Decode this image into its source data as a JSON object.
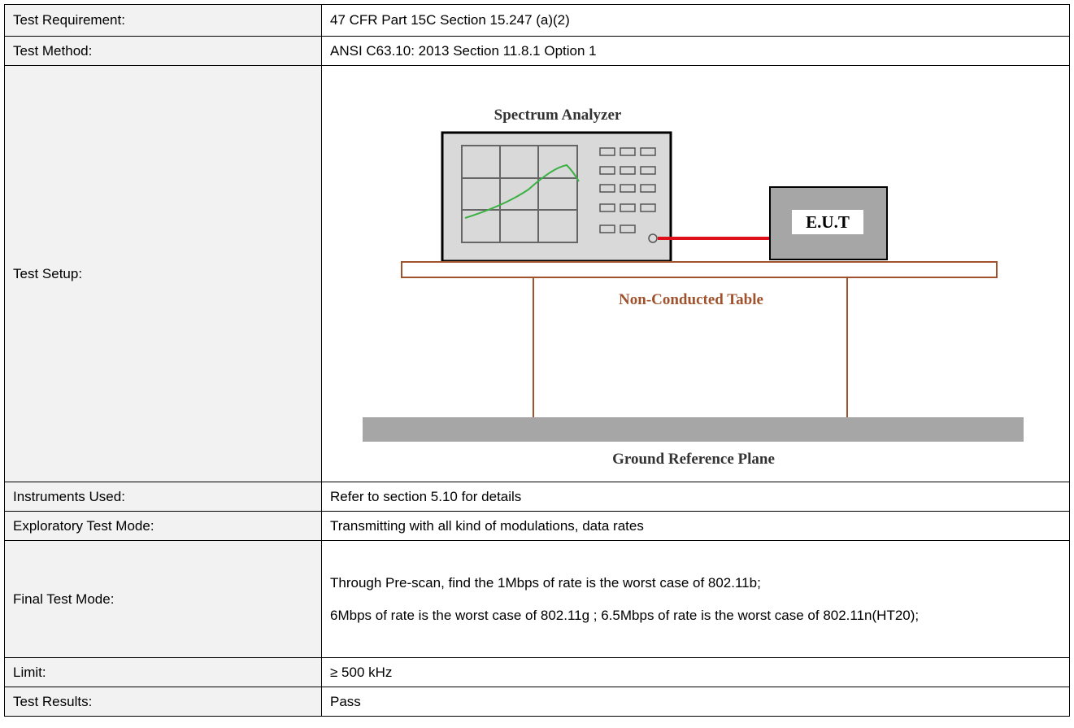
{
  "table": {
    "rows": [
      {
        "label": "Test Requirement:",
        "value": "47 CFR Part 15C Section 15.247 (a)(2)"
      },
      {
        "label": "Test Method:",
        "value": "ANSI C63.10: 2013 Section 11.8.1 Option 1"
      },
      {
        "label": "Test Setup:",
        "diagram": {
          "analyzer": "Spectrum Analyzer",
          "eut": "E.U.T",
          "table": "Non-Conducted Table",
          "ground": "Ground Reference Plane"
        }
      },
      {
        "label": "Instruments Used:",
        "value": "Refer to section 5.10 for details"
      },
      {
        "label": "Exploratory Test Mode:",
        "value": "Transmitting with all kind of modulations, data rates"
      },
      {
        "label": "Final Test Mode:",
        "paragraphs": [
          "Through Pre-scan, find the 1Mbps of rate is the worst case of 802.11b;",
          "6Mbps of rate is the worst case of 802.11g ; 6.5Mbps of rate is the worst case of 802.11n(HT20);"
        ]
      },
      {
        "label": "Limit:",
        "value": "≥ 500 kHz"
      },
      {
        "label": "Test Results:",
        "value": "Pass"
      }
    ]
  }
}
